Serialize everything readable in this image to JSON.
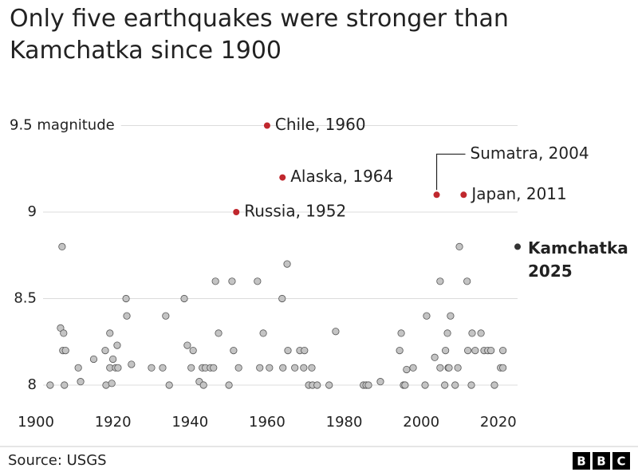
{
  "chart_data": {
    "type": "scatter",
    "title": "Only five earthquakes were stronger than Kamchatka since 1900",
    "xlim": [
      1900,
      2025
    ],
    "xticks": [
      1900,
      1920,
      1940,
      1960,
      1980,
      2000,
      2020
    ],
    "ylim": [
      7.9,
      9.6
    ],
    "yticks": [
      8,
      8.5,
      9,
      {
        "value": 9.5,
        "label": "9.5 magnitude"
      }
    ],
    "grid": true,
    "series": [
      {
        "color": "#c4c4c4",
        "x": [
          1903.7,
          1906.4,
          1906.8,
          1907.2,
          1907,
          1907.7,
          1907.4,
          1911,
          1911.6,
          1915,
          1918,
          1919.2,
          1918.2,
          1919.2,
          1919.7,
          1920,
          1920.7,
          1921.3,
          1921.1,
          1923.4,
          1923.6,
          1924.8,
          1930,
          1932.9,
          1933.7,
          1934.6,
          1938.5,
          1939.3,
          1940.3,
          1940.8,
          1942.4,
          1943.2,
          1943.5,
          1944,
          1945.3,
          1946.1,
          1946.6,
          1947.4,
          1950.1,
          1950.9,
          1951.3,
          1952.6,
          1957.5,
          1958.1,
          1959,
          1960.6,
          1963.9,
          1964.1,
          1965.2,
          1965.4,
          1967.2,
          1968.5,
          1969.7,
          1969.5,
          1970.8,
          1971.6,
          1971.8,
          1973,
          1976.1,
          1977.8,
          1985,
          1985.7,
          1986.3,
          1989.4,
          1994.4,
          1994.8,
          1995.4,
          1995.8,
          1996.2,
          1997.9,
          2001,
          2001.4,
          2003.5,
          2004.9,
          2004.9,
          2006.1,
          2006.3,
          2006.8,
          2007,
          2007.2,
          2007.6,
          2008.8,
          2009.5,
          2009.9,
          2011.9,
          2012.1,
          2013,
          2013.2,
          2014,
          2015.5,
          2016.3,
          2017.3,
          2018.1,
          2019,
          2020.6,
          2021.2,
          2021.2
        ],
        "values": [
          8.0,
          8.33,
          8.8,
          8.3,
          8.2,
          8.2,
          8.0,
          8.1,
          8.02,
          8.15,
          8.2,
          8.3,
          8.0,
          8.1,
          8.01,
          8.15,
          8.1,
          8.1,
          8.23,
          8.5,
          8.4,
          8.12,
          8.1,
          8.1,
          8.4,
          8.0,
          8.5,
          8.23,
          8.1,
          8.2,
          8.02,
          8.1,
          8.0,
          8.1,
          8.1,
          8.1,
          8.6,
          8.3,
          8.0,
          8.6,
          8.2,
          8.1,
          8.6,
          8.1,
          8.3,
          8.1,
          8.5,
          8.1,
          8.7,
          8.2,
          8.1,
          8.2,
          8.2,
          8.1,
          8.0,
          8.1,
          8.0,
          8.0,
          8.0,
          8.31,
          8.0,
          8.0,
          8.0,
          8.02,
          8.2,
          8.3,
          8.0,
          8.0,
          8.09,
          8.1,
          8.0,
          8.4,
          8.16,
          8.6,
          8.1,
          8.0,
          8.2,
          8.3,
          8.1,
          8.1,
          8.4,
          8.0,
          8.1,
          8.8,
          8.6,
          8.2,
          8.0,
          8.3,
          8.2,
          8.3,
          8.2,
          8.2,
          8.2,
          8.0,
          8.1,
          8.2,
          8.1
        ]
      },
      {
        "color": "#c0272d",
        "x": [
          1960,
          1964,
          1952,
          2004,
          2011
        ],
        "values": [
          9.5,
          9.2,
          9.0,
          9.1,
          9.1
        ],
        "labels": [
          "Chile, 1960",
          "Alaska, 1964",
          "Russia, 1952",
          "Sumatra, 2004",
          "Japan, 2011"
        ]
      },
      {
        "color": "#333333",
        "x": [
          2025
        ],
        "values": [
          8.8
        ],
        "labels": [
          "Kamchatka 2025"
        ]
      }
    ]
  },
  "footer": {
    "source": "Source: USGS",
    "logo": [
      "B",
      "B",
      "C"
    ]
  }
}
